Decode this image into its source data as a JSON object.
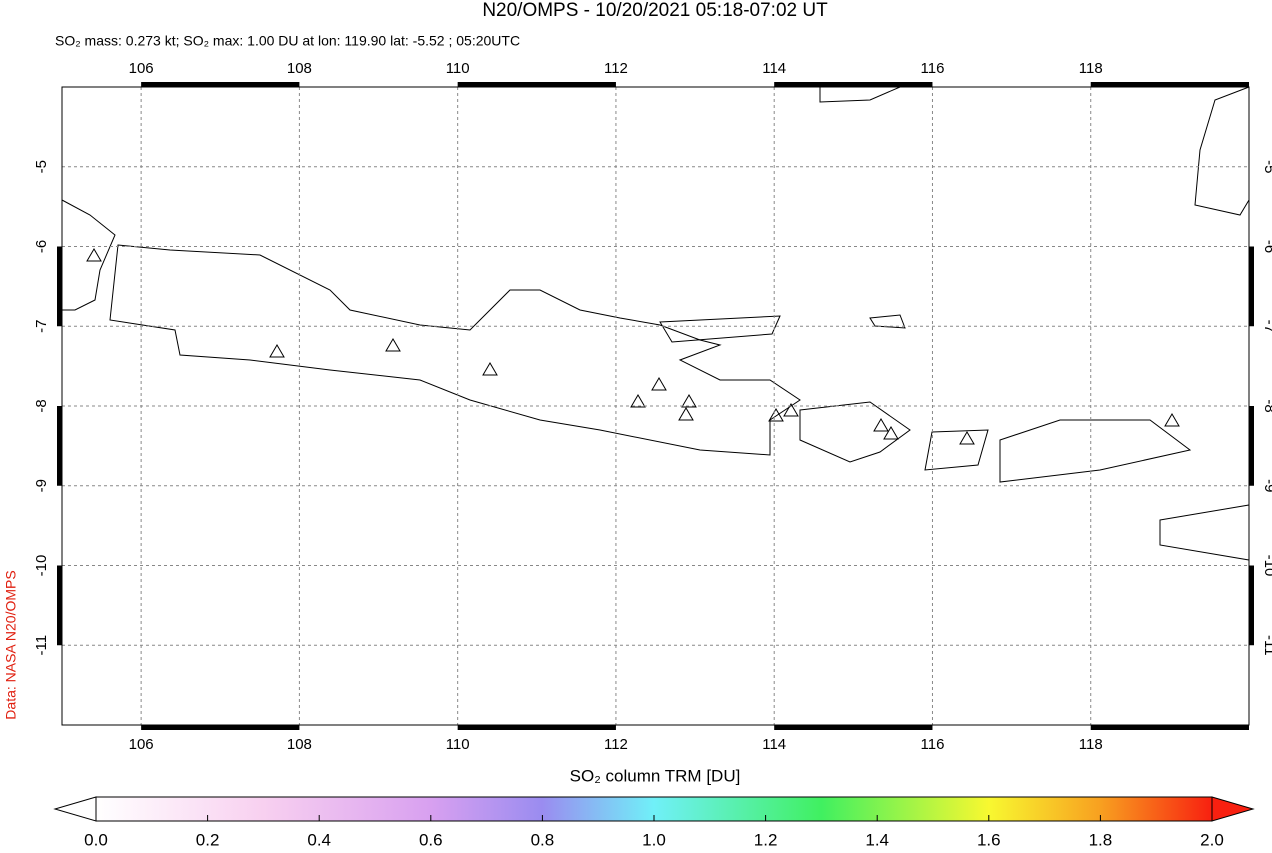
{
  "title": "N20/OMPS - 10/20/2021 05:18-07:02 UT",
  "subtitle": "SO₂ mass: 0.273 kt; SO₂ max: 1.00 DU at lon: 119.90 lat: -5.52 ; 05:20UTC",
  "credit": "Data: NASA N20/OMPS",
  "map": {
    "xlim": [
      105,
      120
    ],
    "ylim": [
      -12,
      -4
    ],
    "xticks": [
      106,
      108,
      110,
      112,
      114,
      116,
      118
    ],
    "yticks": [
      -5,
      -6,
      -7,
      -8,
      -9,
      -10,
      -11
    ],
    "grid": true
  },
  "colorbar": {
    "label": "SO₂ column TRM [DU]",
    "lim": [
      0,
      2
    ],
    "ticks": [
      {
        "value": 0,
        "label": "0.0"
      },
      {
        "value": 0.2,
        "label": "0.2"
      },
      {
        "value": 0.4,
        "label": "0.4"
      },
      {
        "value": 0.6,
        "label": "0.6"
      },
      {
        "value": 0.8,
        "label": "0.8"
      },
      {
        "value": 1,
        "label": "1.0"
      },
      {
        "value": 1.2,
        "label": "1.2"
      },
      {
        "value": 1.4,
        "label": "1.4"
      },
      {
        "value": 1.6,
        "label": "1.6"
      },
      {
        "value": 1.8,
        "label": "1.8"
      },
      {
        "value": 2,
        "label": "2.0"
      }
    ]
  }
}
